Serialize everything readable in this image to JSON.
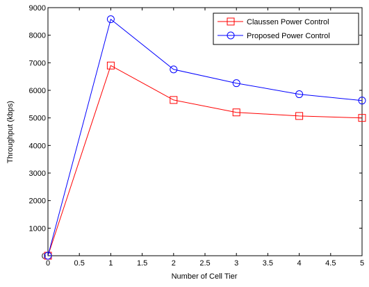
{
  "chart_data": {
    "type": "line",
    "title": "",
    "xlabel": "Number of Cell Tier",
    "ylabel": "Throughput (kbps)",
    "xlim": [
      0,
      5
    ],
    "ylim": [
      0,
      9000
    ],
    "x_ticks": [
      0,
      0.5,
      1,
      1.5,
      2,
      2.5,
      3,
      3.5,
      4,
      4.5,
      5
    ],
    "x_tick_labels": [
      "0",
      "0.5",
      "1",
      "1.5",
      "2",
      "2.5",
      "3",
      "3.5",
      "4",
      "4.5",
      "5"
    ],
    "y_ticks": [
      0,
      1000,
      2000,
      3000,
      4000,
      5000,
      6000,
      7000,
      8000,
      9000
    ],
    "y_tick_labels": [
      "0",
      "1000",
      "2000",
      "3000",
      "4000",
      "5000",
      "6000",
      "7000",
      "8000",
      "9000"
    ],
    "grid": false,
    "legend_position": "top-right",
    "series": [
      {
        "name": "Claussen Power Control",
        "color": "#ff0000",
        "marker": "square",
        "x": [
          0,
          1,
          2,
          3,
          4,
          5
        ],
        "y": [
          0,
          6900,
          5650,
          5200,
          5070,
          5000
        ]
      },
      {
        "name": "Proposed Power Control",
        "color": "#0000ff",
        "marker": "circle",
        "x": [
          0,
          1,
          2,
          3,
          4,
          5
        ],
        "y": [
          0,
          8580,
          6760,
          6260,
          5860,
          5630
        ]
      }
    ]
  }
}
